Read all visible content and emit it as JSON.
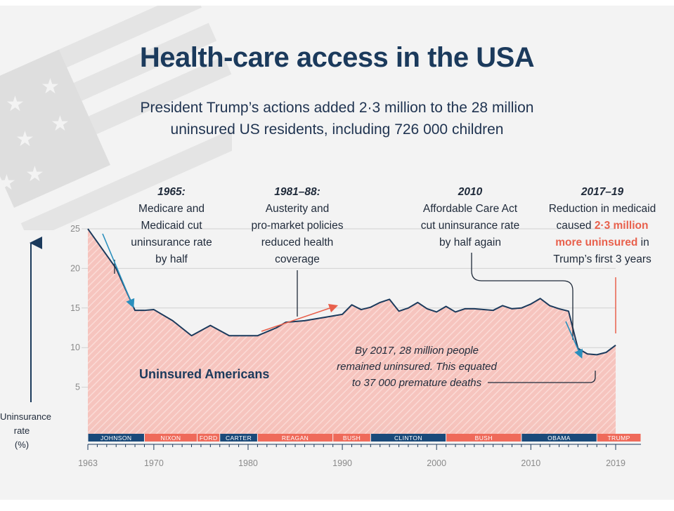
{
  "title": "Health-care access in the USA",
  "subtitle": {
    "line1": "President Trump’s actions added 2·3 million to the 28 million",
    "line2": "uninsured US residents, including 726 000 children"
  },
  "colors": {
    "navy": "#1b3a5c",
    "red": "#e8604c",
    "area": "#f7c7c2",
    "teal": "#2a8fbd",
    "republican": "#ef6a5a",
    "democrat": "#1a4a7a"
  },
  "annotations": {
    "a1965": {
      "year": "1965:",
      "lines": [
        "Medicare and",
        "Medicaid cut",
        "uninsurance rate",
        "by half"
      ]
    },
    "a1981": {
      "year": "1981–88:",
      "lines": [
        "Austerity and",
        "pro-market policies",
        "reduced health",
        "coverage"
      ]
    },
    "a2010": {
      "year": "2010",
      "lines": [
        "Affordable Care Act",
        "cut uninsurance rate",
        "by half again"
      ]
    },
    "a2017": {
      "year": "2017–19",
      "line1": "Reduction in medicaid",
      "line2_pre": "caused ",
      "line2_red": "2·3 million",
      "line3_red": "more uninsured",
      "line3_post": " in",
      "line4": "Trump’s first 3 years"
    }
  },
  "note": {
    "lines": [
      "By 2017, 28 million people",
      "remained uninsured. This equated",
      "to 37 000 premature deaths"
    ]
  },
  "area_label": "Uninsured Americans",
  "y_axis_label": [
    "Uninsurance",
    "rate",
    "(%)"
  ],
  "chart_data": {
    "type": "area",
    "title": "Health-care access in the USA",
    "xlabel": "",
    "ylabel": "Uninsurance rate (%)",
    "xlim": [
      1963,
      2019
    ],
    "ylim": [
      0,
      25
    ],
    "y_ticks": [
      5,
      10,
      15,
      20,
      25
    ],
    "x_ticks": [
      1963,
      1970,
      1980,
      1990,
      2000,
      2010,
      2019
    ],
    "grid": true,
    "series": [
      {
        "name": "Uninsured Americans",
        "x": [
          1963,
          1966,
          1968,
          1969,
          1970,
          1972,
          1974,
          1976,
          1978,
          1980,
          1981,
          1983,
          1984,
          1986,
          1988,
          1989,
          1990,
          1991,
          1992,
          1993,
          1994,
          1995,
          1996,
          1997,
          1998,
          1999,
          2000,
          2001,
          2002,
          2003,
          2004,
          2005,
          2006,
          2007,
          2008,
          2009,
          2010,
          2011,
          2012,
          2013,
          2014,
          2015,
          2016,
          2017,
          2018,
          2019
        ],
        "values": [
          25,
          20,
          14.7,
          14.7,
          14.8,
          13.4,
          11.5,
          12.8,
          11.5,
          11.5,
          11.5,
          12.5,
          13.2,
          13.4,
          13.8,
          14.0,
          14.2,
          15.4,
          14.8,
          15.1,
          15.7,
          16.1,
          14.6,
          15.0,
          15.7,
          14.9,
          14.5,
          15.2,
          14.5,
          14.9,
          14.9,
          14.8,
          14.7,
          15.3,
          14.9,
          15.0,
          15.5,
          16.2,
          15.3,
          14.9,
          14.6,
          9.9,
          9.2,
          9.1,
          9.4,
          10.3
        ]
      }
    ],
    "presidents": [
      {
        "name": "JOHNSON",
        "start": 1963,
        "end": 1969,
        "party": "D"
      },
      {
        "name": "NIXON",
        "start": 1969,
        "end": 1974.6,
        "party": "R"
      },
      {
        "name": "FORD",
        "start": 1974.6,
        "end": 1977,
        "party": "R"
      },
      {
        "name": "CARTER",
        "start": 1977,
        "end": 1981,
        "party": "D"
      },
      {
        "name": "REAGAN",
        "start": 1981,
        "end": 1989,
        "party": "R"
      },
      {
        "name": "BUSH",
        "start": 1989,
        "end": 1993,
        "party": "R"
      },
      {
        "name": "CLINTON",
        "start": 1993,
        "end": 2001,
        "party": "D"
      },
      {
        "name": "BUSH",
        "start": 2001,
        "end": 2009,
        "party": "R"
      },
      {
        "name": "OBAMA",
        "start": 2009,
        "end": 2017,
        "party": "D"
      },
      {
        "name": "TRUMP",
        "start": 2017,
        "end": 2019.8,
        "party": "R"
      }
    ]
  }
}
